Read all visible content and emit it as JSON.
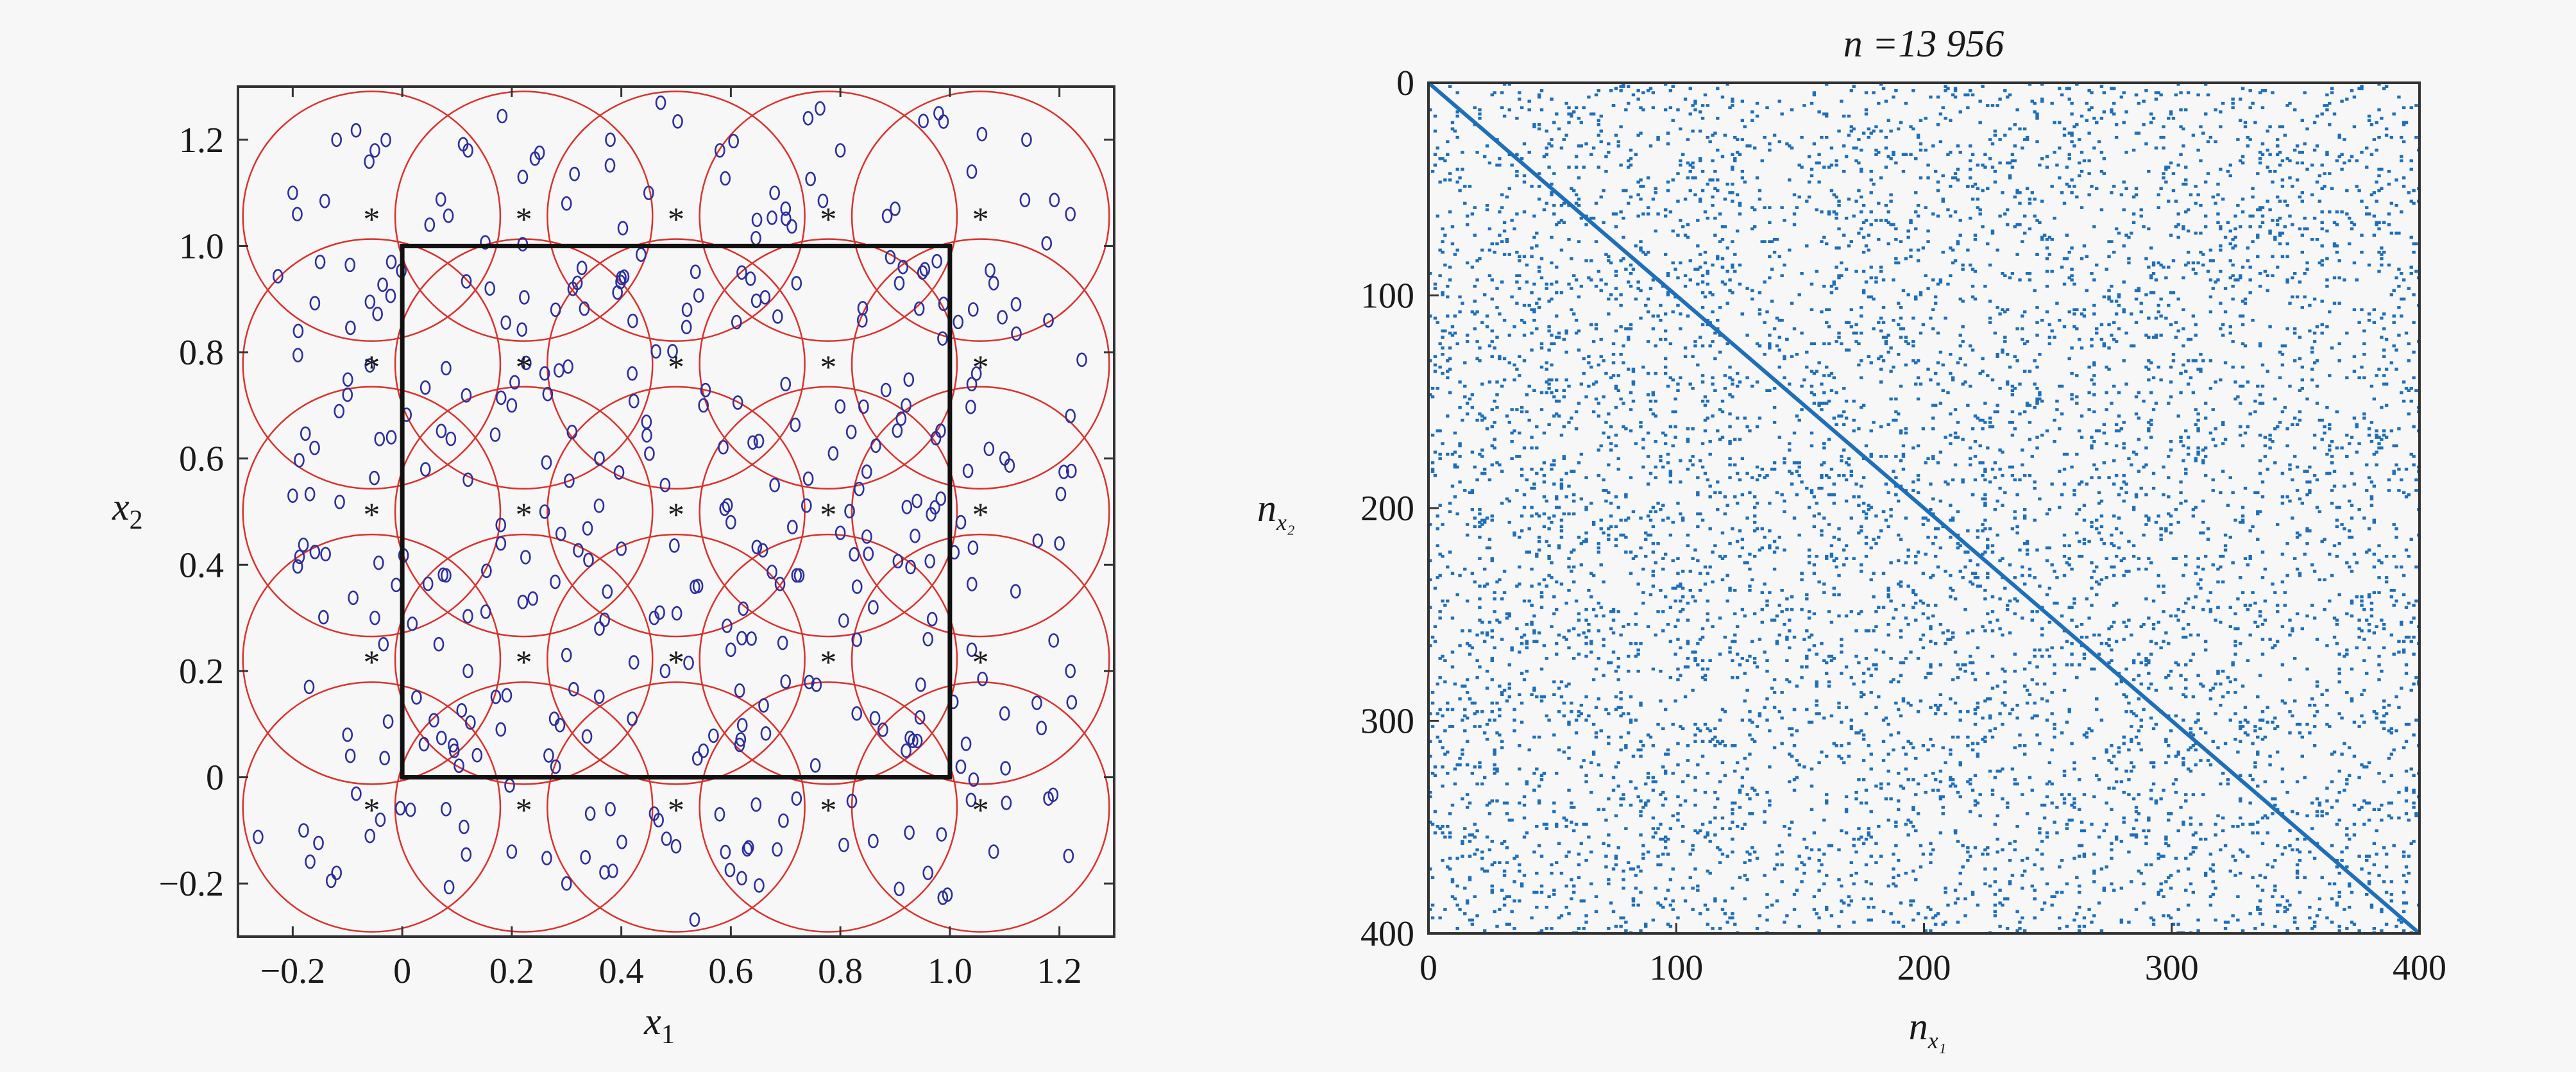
{
  "chart_data": [
    {
      "type": "scatter",
      "xlabel": "x",
      "xlabel_sub": "1",
      "ylabel": "x",
      "ylabel_sub": "2",
      "xlim": [
        -0.3,
        1.3
      ],
      "ylim": [
        -0.3,
        1.3
      ],
      "xticks": [
        -0.2,
        0,
        0.2,
        0.4,
        0.6,
        0.8,
        1.0,
        1.2
      ],
      "xtick_labels": [
        "−0.2",
        "0",
        "0.2",
        "0.4",
        "0.6",
        "0.8",
        "1.0",
        "1.2"
      ],
      "yticks": [
        -0.2,
        0,
        0.2,
        0.4,
        0.6,
        0.8,
        1.0,
        1.2
      ],
      "ytick_labels": [
        "−0.2",
        "0",
        "0.2",
        "0.4",
        "0.6",
        "0.8",
        "1.0",
        "1.2"
      ],
      "grid": false,
      "unit_square": [
        0,
        1
      ],
      "centers_x": [
        -0.056,
        0.222,
        0.5,
        0.778,
        1.056
      ],
      "centers_y": [
        -0.056,
        0.222,
        0.5,
        0.778,
        1.056
      ],
      "circle_radius": 0.235,
      "center_marker": "*",
      "center_color": "#d8322e",
      "circle_color": "#d8322e",
      "point_marker": "o",
      "point_color": "#2b2f9c",
      "square_color": "#111111",
      "points_per_cell": 16,
      "points": [
        [
          -0.05,
          1.18
        ],
        [
          -0.12,
          1.2
        ],
        [
          -0.2,
          1.1
        ],
        [
          -0.02,
          0.97
        ],
        [
          -0.15,
          0.97
        ],
        [
          -0.19,
          0.84
        ],
        [
          -0.1,
          0.72
        ],
        [
          -0.16,
          0.62
        ],
        [
          -0.02,
          0.64
        ],
        [
          -0.2,
          0.53
        ],
        [
          -0.14,
          0.42
        ],
        [
          -0.05,
          0.3
        ],
        [
          -0.17,
          0.17
        ],
        [
          -0.1,
          0.08
        ],
        [
          -0.04,
          -0.08
        ],
        [
          -0.18,
          -0.1
        ],
        [
          -0.12,
          -0.18
        ],
        [
          0.05,
          1.04
        ],
        [
          0.12,
          1.18
        ],
        [
          0.22,
          1.13
        ],
        [
          0.3,
          1.08
        ],
        [
          0.16,
          0.92
        ],
        [
          0.28,
          0.88
        ],
        [
          0.08,
          0.77
        ],
        [
          0.2,
          0.7
        ],
        [
          0.31,
          0.65
        ],
        [
          0.12,
          0.56
        ],
        [
          0.26,
          0.5
        ],
        [
          0.08,
          0.38
        ],
        [
          0.22,
          0.33
        ],
        [
          0.3,
          0.23
        ],
        [
          0.12,
          0.2
        ],
        [
          0.18,
          0.09
        ],
        [
          0.28,
          0.02
        ],
        [
          0.08,
          -0.06
        ],
        [
          0.2,
          -0.14
        ],
        [
          0.3,
          -0.2
        ],
        [
          0.38,
          1.2
        ],
        [
          0.45,
          1.1
        ],
        [
          0.58,
          1.18
        ],
        [
          0.4,
          0.94
        ],
        [
          0.52,
          0.88
        ],
        [
          0.62,
          0.95
        ],
        [
          0.42,
          0.76
        ],
        [
          0.55,
          0.7
        ],
        [
          0.36,
          0.6
        ],
        [
          0.48,
          0.55
        ],
        [
          0.6,
          0.48
        ],
        [
          0.4,
          0.43
        ],
        [
          0.54,
          0.36
        ],
        [
          0.36,
          0.28
        ],
        [
          0.48,
          0.2
        ],
        [
          0.6,
          0.24
        ],
        [
          0.42,
          0.11
        ],
        [
          0.55,
          0.05
        ],
        [
          0.38,
          -0.06
        ],
        [
          0.5,
          -0.13
        ],
        [
          0.62,
          -0.19
        ],
        [
          0.68,
          1.1
        ],
        [
          0.8,
          1.18
        ],
        [
          0.9,
          1.07
        ],
        [
          0.72,
          0.93
        ],
        [
          0.84,
          0.86
        ],
        [
          0.95,
          0.95
        ],
        [
          0.7,
          0.74
        ],
        [
          0.82,
          0.65
        ],
        [
          0.92,
          0.7
        ],
        [
          0.68,
          0.55
        ],
        [
          0.8,
          0.46
        ],
        [
          0.94,
          0.52
        ],
        [
          0.72,
          0.38
        ],
        [
          0.86,
          0.32
        ],
        [
          0.96,
          0.26
        ],
        [
          0.7,
          0.18
        ],
        [
          0.83,
          0.12
        ],
        [
          0.92,
          0.05
        ],
        [
          0.72,
          -0.04
        ],
        [
          0.86,
          -0.12
        ],
        [
          0.96,
          -0.18
        ],
        [
          1.04,
          1.14
        ],
        [
          1.14,
          1.2
        ],
        [
          1.22,
          1.06
        ],
        [
          1.08,
          0.93
        ],
        [
          1.18,
          0.86
        ],
        [
          1.04,
          0.74
        ],
        [
          1.22,
          0.68
        ],
        [
          1.1,
          0.6
        ],
        [
          1.02,
          0.48
        ],
        [
          1.2,
          0.44
        ],
        [
          1.12,
          0.35
        ],
        [
          1.04,
          0.24
        ],
        [
          1.22,
          0.2
        ],
        [
          1.1,
          0.12
        ],
        [
          1.02,
          0.02
        ],
        [
          1.18,
          -0.04
        ],
        [
          1.08,
          -0.14
        ],
        [
          0.26,
          0.76
        ],
        [
          0.64,
          0.63
        ],
        [
          0.18,
          0.44
        ],
        [
          0.46,
          0.3
        ]
      ]
    },
    {
      "type": "heatmap",
      "title": "n =13 956",
      "xlabel": "n",
      "xlabel_sub": "x₁",
      "ylabel": "n",
      "ylabel_sub": "x₂",
      "xlim": [
        0,
        400
      ],
      "ylim": [
        0,
        400
      ],
      "xticks": [
        0,
        100,
        200,
        300,
        400
      ],
      "xtick_labels": [
        "0",
        "100",
        "200",
        "300",
        "400"
      ],
      "yticks": [
        0,
        100,
        200,
        300,
        400
      ],
      "ytick_labels": [
        "0",
        "100",
        "200",
        "300",
        "400"
      ],
      "y_reversed": true,
      "grid": false,
      "dot_color": "#1f6fb8",
      "nonzeros": 13956,
      "matrix_size": 400,
      "pattern_seed": 13956,
      "dense_diagonal": true
    }
  ]
}
